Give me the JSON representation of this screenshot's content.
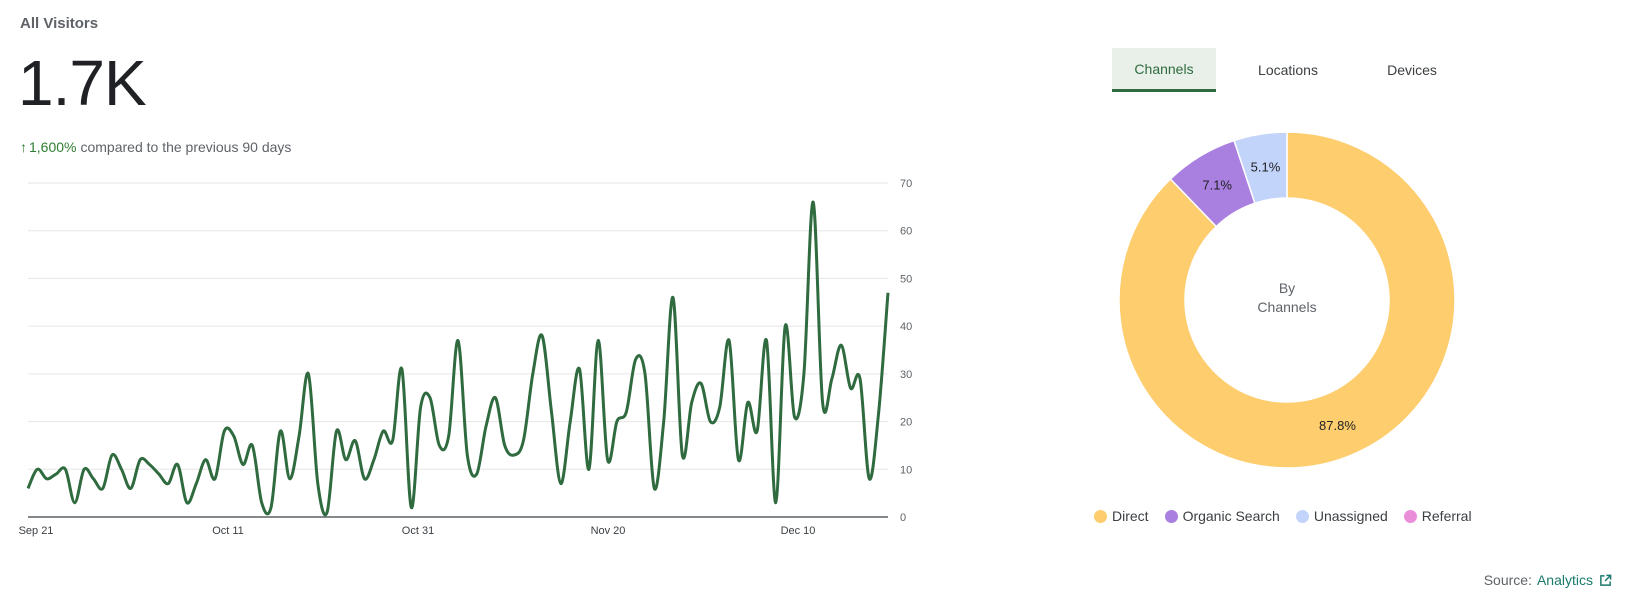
{
  "header": {
    "title": "All Visitors",
    "total": "1.7K",
    "change_pct": "1,600%",
    "change_text": "compared to the previous 90 days"
  },
  "tabs": [
    {
      "label": "Channels",
      "active": true
    },
    {
      "label": "Locations",
      "active": false
    },
    {
      "label": "Devices",
      "active": false
    }
  ],
  "chart_data": [
    {
      "type": "line",
      "title": "",
      "xlabel": "",
      "ylabel": "",
      "x_tick_labels": [
        "Sep 21",
        "Oct 11",
        "Oct 31",
        "Nov 20",
        "Dec 10"
      ],
      "y_ticks": [
        0,
        10,
        20,
        30,
        40,
        50,
        60,
        70
      ],
      "ylim": [
        0,
        70
      ],
      "grid": true,
      "series_color": "#2f6b3f",
      "values": [
        6,
        10,
        8,
        9,
        10,
        3,
        10,
        8,
        6,
        13,
        10,
        6,
        12,
        11,
        9,
        7,
        11,
        3,
        7,
        12,
        8,
        18,
        17,
        11,
        15,
        3,
        2,
        18,
        8,
        17,
        30,
        7,
        1,
        18,
        12,
        16,
        8,
        12,
        18,
        16,
        31,
        2,
        23,
        25,
        15,
        17,
        37,
        13,
        9,
        19,
        25,
        15,
        13,
        16,
        30,
        38,
        22,
        7,
        20,
        31,
        10,
        37,
        12,
        20,
        22,
        33,
        30,
        6,
        20,
        46,
        13,
        24,
        28,
        20,
        23,
        37,
        12,
        24,
        18,
        37,
        3,
        40,
        21,
        30,
        66,
        24,
        29,
        36,
        27,
        29,
        8,
        22,
        47
      ]
    },
    {
      "type": "pie",
      "title": "",
      "center_label_line1": "By",
      "center_label_line2": "Channels",
      "slices": [
        {
          "name": "Direct",
          "value": 87.8,
          "label": "87.8%",
          "color": "#fdcd6e"
        },
        {
          "name": "Organic Search",
          "value": 7.1,
          "label": "7.1%",
          "color": "#a97fe0"
        },
        {
          "name": "Unassigned",
          "value": 5.1,
          "label": "5.1%",
          "color": "#c3d4fb"
        },
        {
          "name": "Referral",
          "value": 0,
          "label": "",
          "color": "#ea8ed9"
        }
      ],
      "legend_position": "bottom"
    }
  ],
  "footer": {
    "source_label": "Source:",
    "source_link": "Analytics",
    "link_icon": "external-link-icon"
  }
}
